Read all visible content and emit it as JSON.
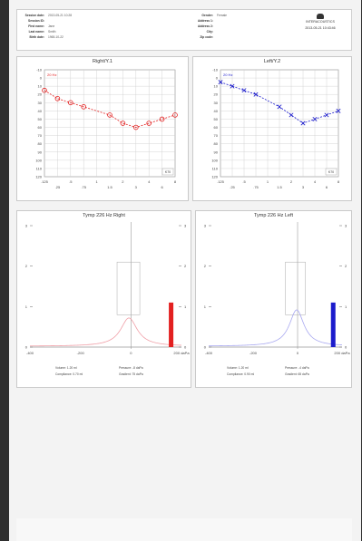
{
  "header": {
    "left": [
      {
        "k": "Session date",
        "v": "2013-05-21 10:28"
      },
      {
        "k": "Session ID",
        "v": ""
      },
      {
        "k": "First name",
        "v": "Jane"
      },
      {
        "k": "Last name",
        "v": "Smith"
      },
      {
        "k": "Birth date",
        "v": "1965-10-22"
      }
    ],
    "mid": [
      {
        "k": "Gender",
        "v": "Female"
      },
      {
        "k": "Address 1",
        "v": ""
      },
      {
        "k": "Address 2",
        "v": ""
      },
      {
        "k": "City",
        "v": ""
      },
      {
        "k": "Zip code",
        "v": ""
      }
    ],
    "logo_text": "INTERACOUSTICS",
    "printed": "2013-05-21 10:43:46"
  },
  "colors": {
    "right": "#e32020",
    "left": "#1b1bcc",
    "right_light": "#f0a0a8",
    "left_light": "#a8a8f0"
  },
  "chart_data": [
    {
      "type": "line",
      "title": "Right/Y.1",
      "x_ticks": [
        ".125",
        ".25",
        ".5",
        ".75",
        "1",
        "1.5",
        "2",
        "3",
        "4",
        "6",
        "8"
      ],
      "y_ticks": [
        "-10",
        "0",
        "10",
        "20",
        "30",
        "40",
        "50",
        "60",
        "70",
        "80",
        "90",
        "100",
        "110",
        "120"
      ],
      "ylim": [
        -10,
        120
      ],
      "corner_label": "20 Hz",
      "badge": "K70",
      "series": [
        {
          "x": [
            0,
            1,
            2,
            3,
            5,
            6,
            7,
            8,
            9,
            10
          ],
          "values": [
            15,
            25,
            30,
            35,
            45,
            55,
            60,
            55,
            50,
            45
          ]
        }
      ]
    },
    {
      "type": "line",
      "title": "Left/Y.2",
      "x_ticks": [
        ".125",
        ".25",
        ".5",
        ".75",
        "1",
        "1.5",
        "2",
        "3",
        "4",
        "6",
        "8"
      ],
      "y_ticks": [
        "-10",
        "0",
        "10",
        "20",
        "30",
        "40",
        "50",
        "60",
        "70",
        "80",
        "90",
        "100",
        "110",
        "120"
      ],
      "ylim": [
        -10,
        120
      ],
      "corner_label": "20 Hz",
      "badge": "K70",
      "series": [
        {
          "x": [
            0,
            1,
            2,
            3,
            5,
            6,
            7,
            8,
            9,
            10
          ],
          "values": [
            5,
            10,
            15,
            20,
            35,
            45,
            55,
            50,
            45,
            40
          ]
        }
      ]
    },
    {
      "type": "line",
      "title": "Tymp 226 Hz Right",
      "x_ticks": [
        "-400",
        "-200",
        "0",
        "200 daPa"
      ],
      "x_min": -400,
      "x_max": 200,
      "y_ticks": [
        "3",
        "2",
        "1",
        "0"
      ],
      "ylim": [
        0,
        3
      ],
      "peak_pressure": -8,
      "peak_compliance": 0.7,
      "bar_value": 1.1,
      "info": {
        "volume": "Volume: 1.20 ml",
        "compliance": "Compliance: 0.70 ml",
        "pressure": "Pressure: -8 daPa",
        "gradient": "Gradient: 75 daPa"
      }
    },
    {
      "type": "line",
      "title": "Tymp 226 Hz Left",
      "x_ticks": [
        "-400",
        "-200",
        "0",
        "200 daPa"
      ],
      "x_min": -400,
      "x_max": 200,
      "y_ticks": [
        "3",
        "2",
        "1",
        "0"
      ],
      "ylim": [
        0,
        3
      ],
      "peak_pressure": -4,
      "peak_compliance": 0.9,
      "bar_value": 1.1,
      "info": {
        "volume": "Volume: 1.20 ml",
        "compliance": "Compliance: 0.90 ml",
        "pressure": "Pressure: -4 daPa",
        "gradient": "Gradient: 65 daPa"
      }
    }
  ]
}
